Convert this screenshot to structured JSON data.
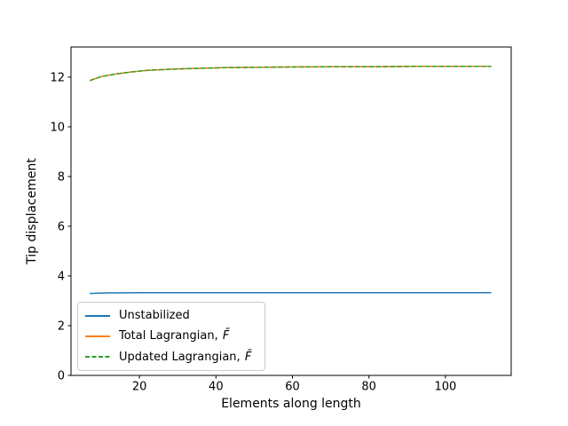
{
  "figure": {
    "background": "#ffffff",
    "axes_edge_color": "#000000",
    "legend_border_color": "#cccccc"
  },
  "chart_data": {
    "type": "line",
    "title": "",
    "xlabel": "Elements along length",
    "ylabel": "Tip displacement",
    "xlim": [
      2.1,
      117.2
    ],
    "ylim": [
      0,
      13.21
    ],
    "xticks": [
      20,
      40,
      60,
      80,
      100
    ],
    "yticks": [
      0,
      2,
      4,
      6,
      8,
      10,
      12
    ],
    "grid": false,
    "legend_position": "lower left",
    "series": [
      {
        "name": "Unstabilized",
        "name_math": "",
        "color": "#1f77b4",
        "style": "solid",
        "x": [
          7,
          12,
          22,
          32,
          42,
          52,
          62,
          72,
          82,
          92,
          102,
          112
        ],
        "y": [
          3.3,
          3.32,
          3.33,
          3.33,
          3.33,
          3.33,
          3.33,
          3.33,
          3.33,
          3.33,
          3.33,
          3.33
        ]
      },
      {
        "name": "Total Lagrangian, ",
        "name_math": "F̄",
        "color": "#ff7f0e",
        "style": "solid",
        "x": [
          7,
          10,
          14,
          18,
          22,
          27,
          32,
          42,
          52,
          62,
          72,
          82,
          92,
          102,
          112
        ],
        "y": [
          11.86,
          12.02,
          12.13,
          12.21,
          12.27,
          12.31,
          12.34,
          12.38,
          12.4,
          12.41,
          12.42,
          12.42,
          12.43,
          12.43,
          12.43
        ]
      },
      {
        "name": "Updated Lagrangian, ",
        "name_math": "F̄",
        "color": "#2ca02c",
        "style": "dashed",
        "x": [
          7,
          10,
          14,
          18,
          22,
          27,
          32,
          42,
          52,
          62,
          72,
          82,
          92,
          102,
          112
        ],
        "y": [
          11.86,
          12.02,
          12.13,
          12.21,
          12.27,
          12.31,
          12.34,
          12.38,
          12.4,
          12.41,
          12.42,
          12.42,
          12.43,
          12.43,
          12.43
        ]
      }
    ]
  }
}
